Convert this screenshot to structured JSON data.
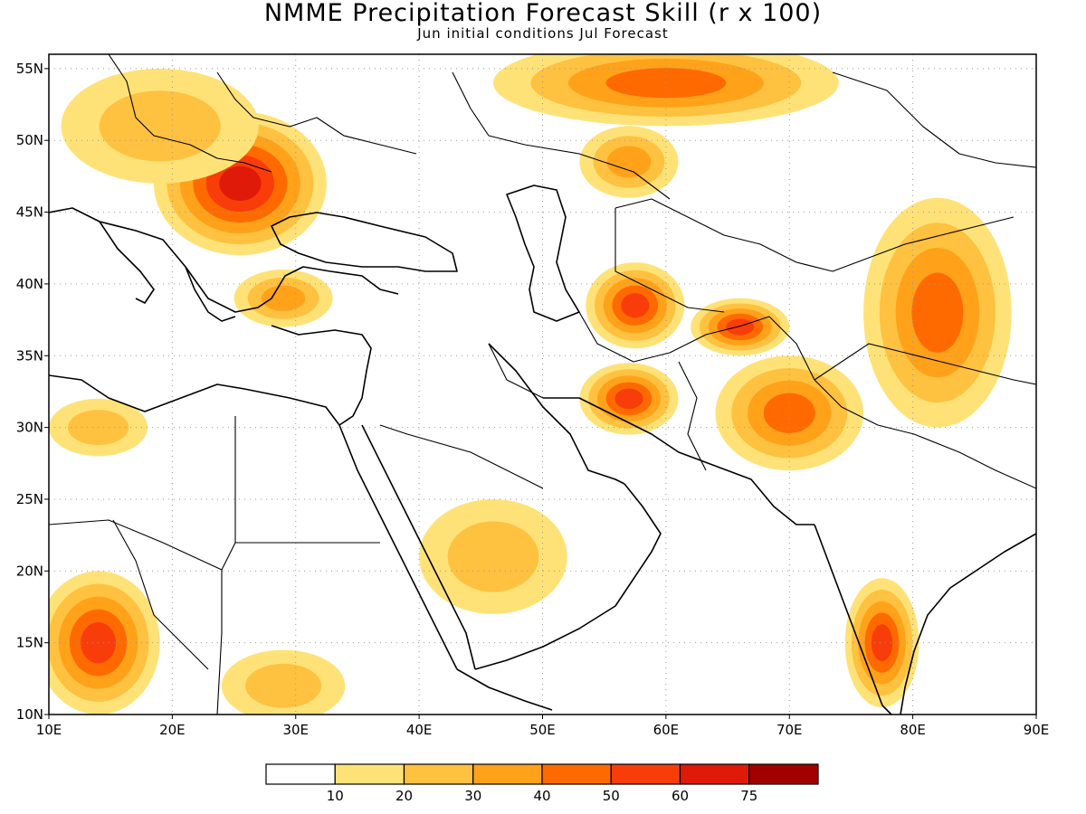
{
  "figure": {
    "title": "NMME Precipitation Forecast Skill (r x 100)",
    "subtitle": "Jun initial conditions  Jul Forecast"
  },
  "map": {
    "lon_range": [
      10,
      90
    ],
    "lat_range": [
      10,
      56
    ],
    "lon_ticks": [
      {
        "value": 10,
        "label": "10E"
      },
      {
        "value": 20,
        "label": "20E"
      },
      {
        "value": 30,
        "label": "30E"
      },
      {
        "value": 40,
        "label": "40E"
      },
      {
        "value": 50,
        "label": "50E"
      },
      {
        "value": 60,
        "label": "60E"
      },
      {
        "value": 70,
        "label": "70E"
      },
      {
        "value": 80,
        "label": "80E"
      },
      {
        "value": 90,
        "label": "90E"
      }
    ],
    "lat_ticks": [
      {
        "value": 10,
        "label": "10N"
      },
      {
        "value": 15,
        "label": "15N"
      },
      {
        "value": 20,
        "label": "20N"
      },
      {
        "value": 25,
        "label": "25N"
      },
      {
        "value": 30,
        "label": "30N"
      },
      {
        "value": 35,
        "label": "35N"
      },
      {
        "value": 40,
        "label": "40N"
      },
      {
        "value": 45,
        "label": "45N"
      },
      {
        "value": 50,
        "label": "50N"
      },
      {
        "value": 55,
        "label": "55N"
      }
    ],
    "gridlines": true,
    "skill_patches": [
      {
        "region": "Romania / Carpathians",
        "lon": 25.5,
        "lat": 47,
        "rx": 7,
        "ry": 5,
        "value": 68
      },
      {
        "region": "Central Europe",
        "lon": 19,
        "lat": 51,
        "rx": 8,
        "ry": 4,
        "value": 22
      },
      {
        "region": "Western Russia",
        "lon": 60,
        "lat": 54,
        "rx": 14,
        "ry": 3,
        "value": 40
      },
      {
        "region": "Kazakhstan west",
        "lon": 57,
        "lat": 48.5,
        "rx": 4,
        "ry": 2.5,
        "value": 32
      },
      {
        "region": "Turkmenistan",
        "lon": 57.5,
        "lat": 38.5,
        "rx": 4,
        "ry": 3,
        "value": 55
      },
      {
        "region": "Afghanistan north",
        "lon": 66,
        "lat": 37,
        "rx": 4,
        "ry": 2,
        "value": 52
      },
      {
        "region": "Iran central",
        "lon": 57,
        "lat": 32,
        "rx": 4,
        "ry": 2.5,
        "value": 50
      },
      {
        "region": "Pakistan",
        "lon": 70,
        "lat": 31,
        "rx": 6,
        "ry": 4,
        "value": 40
      },
      {
        "region": "Western China",
        "lon": 82,
        "lat": 38,
        "rx": 6,
        "ry": 8,
        "value": 42
      },
      {
        "region": "Northwest Turkey",
        "lon": 29,
        "lat": 39,
        "rx": 4,
        "ry": 2,
        "value": 38
      },
      {
        "region": "Sahel Chad",
        "lon": 14,
        "lat": 15,
        "rx": 5,
        "ry": 5,
        "value": 55
      },
      {
        "region": "Sudan",
        "lon": 29,
        "lat": 12,
        "rx": 5,
        "ry": 2.5,
        "value": 25
      },
      {
        "region": "Saudi Arabia",
        "lon": 46,
        "lat": 21,
        "rx": 6,
        "ry": 4,
        "value": 20
      },
      {
        "region": "South India",
        "lon": 77.5,
        "lat": 15,
        "rx": 3,
        "ry": 4.5,
        "value": 55
      },
      {
        "region": "Libya",
        "lon": 14,
        "lat": 30,
        "rx": 4,
        "ry": 2,
        "value": 25
      }
    ]
  },
  "colorbar": {
    "labels": [
      "10",
      "20",
      "30",
      "40",
      "50",
      "60",
      "75"
    ],
    "colors": [
      "#ffffff",
      "#ffe277",
      "#ffc140",
      "#ffa21a",
      "#ff6a00",
      "#f93d0a",
      "#df1a08",
      "#a20000"
    ]
  }
}
